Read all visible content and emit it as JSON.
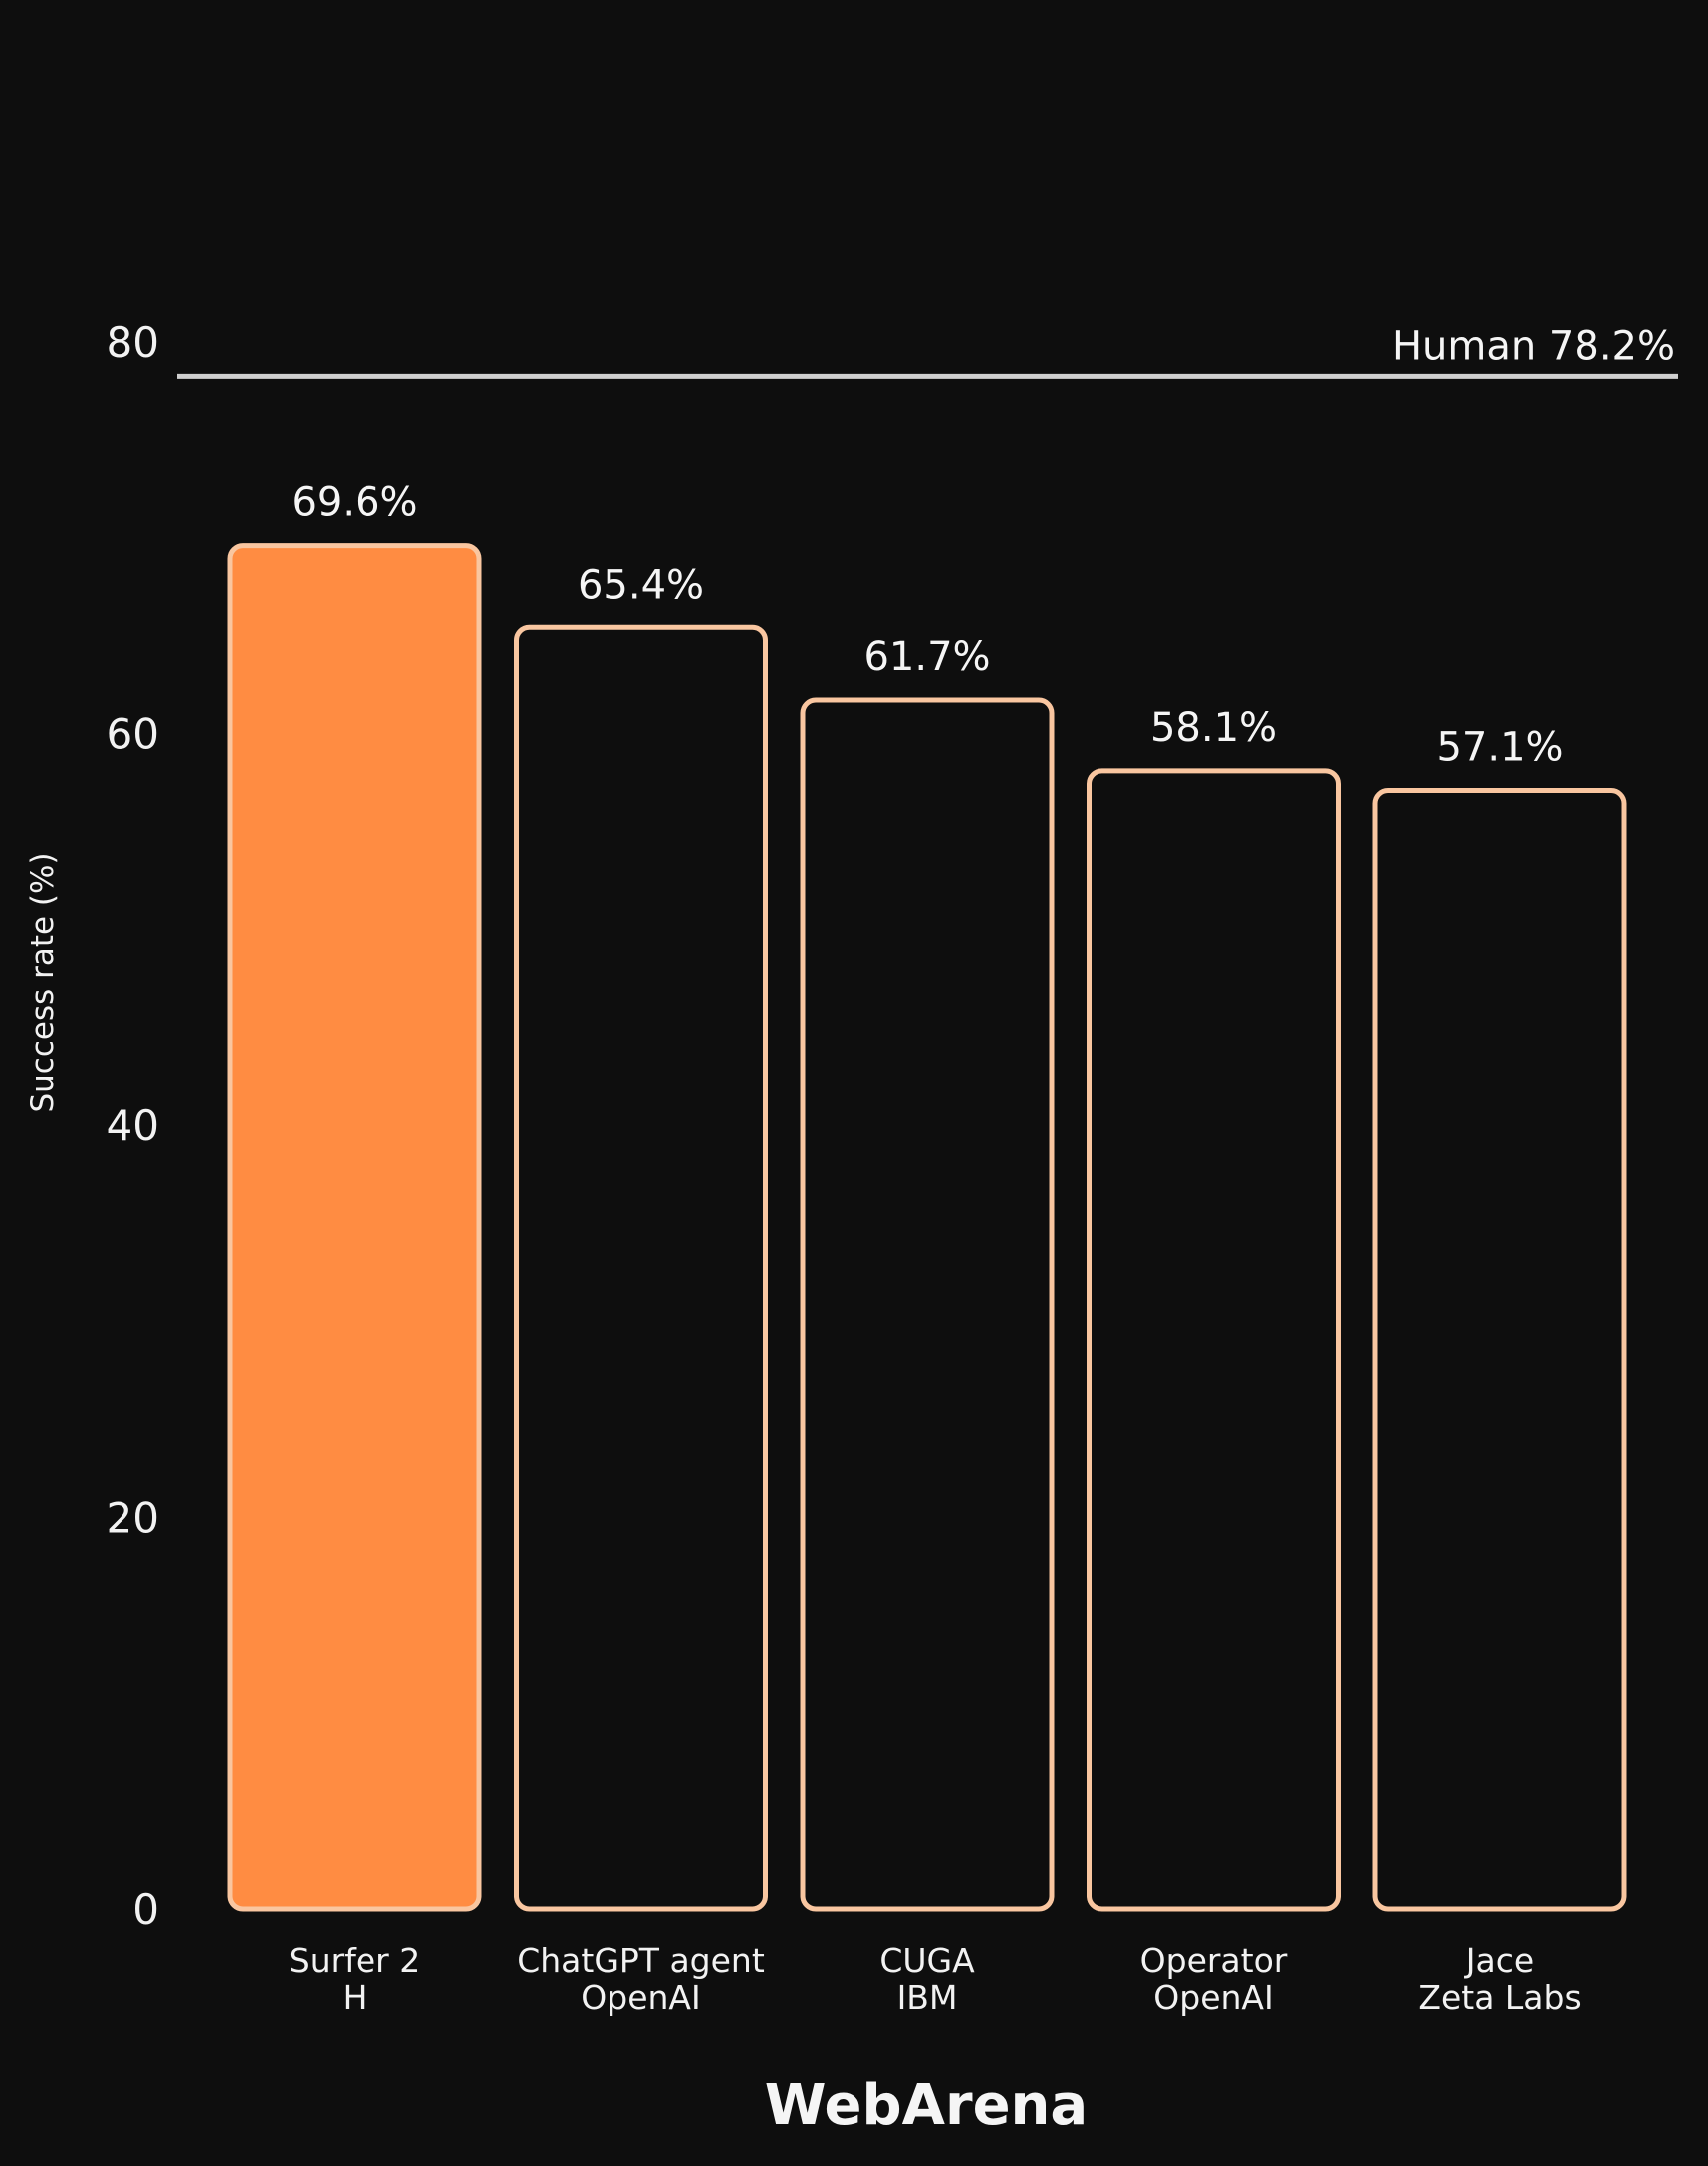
{
  "chart_data": {
    "type": "bar",
    "title": "WebArena",
    "ylabel": "Success rate (%)",
    "xlabel": "",
    "ylim": [
      0,
      80
    ],
    "yticks": [
      0,
      20,
      40,
      60,
      80
    ],
    "grid": false,
    "categories": [
      {
        "name": "Surfer 2",
        "org": "H"
      },
      {
        "name": "ChatGPT agent",
        "org": "OpenAI"
      },
      {
        "name": "CUGA",
        "org": "IBM"
      },
      {
        "name": "Operator",
        "org": "OpenAI"
      },
      {
        "name": "Jace",
        "org": "Zeta Labs"
      }
    ],
    "values": [
      69.6,
      65.4,
      61.7,
      58.1,
      57.1
    ],
    "value_labels": [
      "69.6%",
      "65.4%",
      "61.7%",
      "58.1%",
      "57.1%"
    ],
    "highlight_index": 0,
    "reference_line": {
      "label": "Human 78.2%",
      "value": 78.2
    }
  },
  "colors": {
    "background": "#0e0e0e",
    "highlight_fill": "#ff8c42",
    "bar_stroke": "#f9c6a0",
    "bar_fill": "#0e0e0e",
    "reference_line": "#d0d0d0",
    "text": "#f2f2f2"
  }
}
